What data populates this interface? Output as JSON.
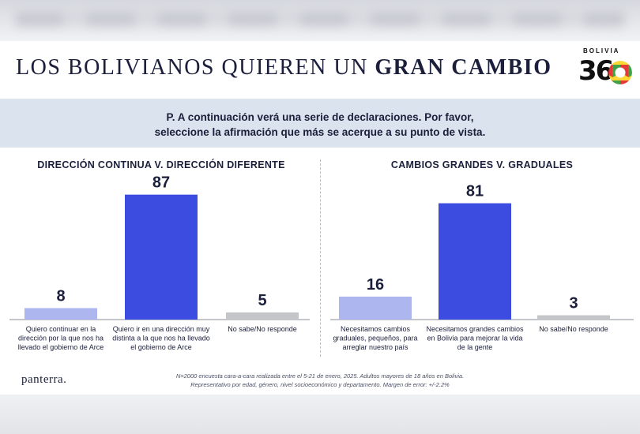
{
  "header": {
    "title_regular": "LOS BOLIVIANOS QUIEREN UN ",
    "title_bold": "GRAN CAMBIO",
    "logo_top": "BOLIVIA",
    "logo_num": "36"
  },
  "question": {
    "line1": "P. A continuación verá una serie de declaraciones. Por favor,",
    "line2": "seleccione la afirmación que más se acerque a su punto de vista."
  },
  "colors": {
    "accent_bar": "#3d4ce0",
    "light_bar": "#aeb6f0",
    "neutral_bar": "#c4c5c9",
    "baseline": "#8a8e98"
  },
  "chart_data": [
    {
      "type": "bar",
      "title": "DIRECCIÓN CONTINUA V. DIRECCIÓN DIFERENTE",
      "categories": [
        [
          "Quiero continuar en la",
          "dirección por la que nos ha",
          "llevado el gobierno de Arce"
        ],
        [
          "Quiero ir en una dirección muy",
          "distinta a la que nos ha llevado",
          "el gobierno de Arce"
        ],
        [
          "No sabe/No responde"
        ]
      ],
      "values": [
        8,
        87,
        5
      ],
      "ylim": [
        0,
        100
      ]
    },
    {
      "type": "bar",
      "title": "CAMBIOS GRANDES V. GRADUALES",
      "categories": [
        [
          "Necesitamos cambios",
          "graduales, pequeños, para",
          "arreglar nuestro país"
        ],
        [
          "Necesitamos grandes cambios",
          "en Bolivia para mejorar la vida",
          "de la gente"
        ],
        [
          "No sabe/No responde"
        ]
      ],
      "values": [
        16,
        81,
        3
      ],
      "ylim": [
        0,
        100
      ]
    }
  ],
  "footer": {
    "brand": "panterra.",
    "note1": "N=2000 encuesta cara-a-cara realizada entre el 5-21 de enero, 2025. Adultos mayores de 18 años en Bolivia.",
    "note2": "Representativo por edad, género, nivel socioeconómico y departamento. Margen de error: +/-2.2%"
  }
}
